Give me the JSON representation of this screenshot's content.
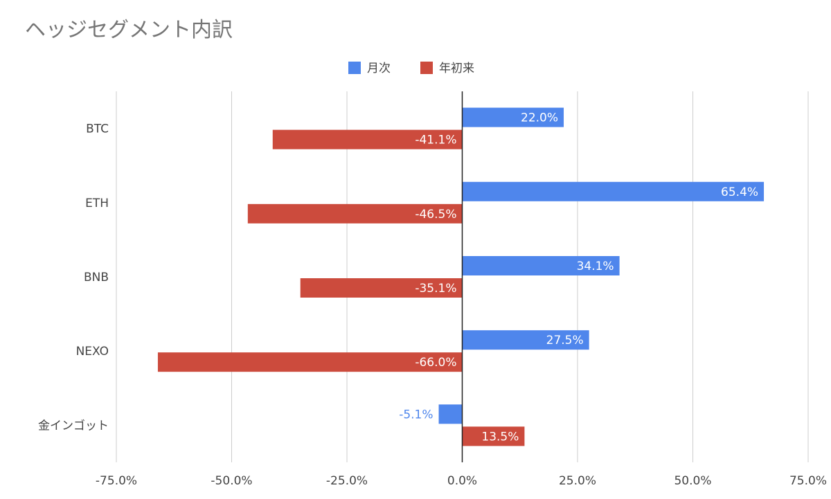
{
  "chart_data": {
    "type": "bar",
    "orientation": "horizontal",
    "title": "ヘッジセグメント内訳",
    "categories": [
      "BTC",
      "ETH",
      "BNB",
      "NEXO",
      "金インゴット"
    ],
    "series": [
      {
        "name": "月次",
        "color": "#4F86EC",
        "values": [
          22.0,
          65.4,
          34.1,
          27.5,
          -5.1
        ],
        "labels": [
          "22.0%",
          "65.4%",
          "34.1%",
          "27.5%",
          "-5.1%"
        ]
      },
      {
        "name": "年初来",
        "color": "#CC4B3D",
        "values": [
          -41.1,
          -46.5,
          -35.1,
          -66.0,
          13.5
        ],
        "labels": [
          "-41.1%",
          "-46.5%",
          "-35.1%",
          "-66.0%",
          "13.5%"
        ]
      }
    ],
    "xlim": [
      -75,
      75
    ],
    "xticks": [
      -75,
      -50,
      -25,
      0,
      25,
      50,
      75
    ],
    "xtick_labels": [
      "-75.0%",
      "-50.0%",
      "-25.0%",
      "0.0%",
      "25.0%",
      "50.0%",
      "75.0%"
    ],
    "xlabel": "",
    "ylabel": "",
    "grid": true,
    "legend_position": "top-center"
  }
}
